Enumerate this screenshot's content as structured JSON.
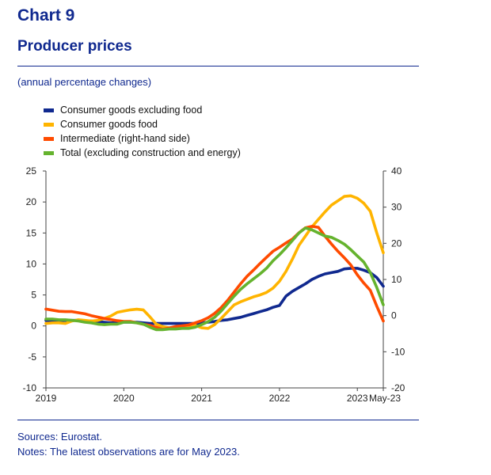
{
  "header": {
    "chart_number": "Chart 9",
    "title": "Producer prices"
  },
  "footer": {
    "sources": "Sources: Eurostat.",
    "notes": "Notes: The latest observations are for May 2023."
  },
  "chart_data": {
    "type": "line",
    "title": "Producer prices",
    "subtitle": "(annual percentage changes)",
    "x_ticks": [
      "2019",
      "2020",
      "2021",
      "2022",
      "2023",
      "May-23"
    ],
    "left_axis": {
      "ylim": [
        -10,
        25
      ],
      "ticks": [
        25,
        20,
        15,
        10,
        5,
        0,
        -5,
        -10
      ]
    },
    "right_axis": {
      "ylim": [
        -20,
        40
      ],
      "ticks": [
        40,
        30,
        20,
        10,
        0,
        -10,
        -20
      ]
    },
    "legend_placement": "top-left",
    "grid": false,
    "x_range": [
      "2019-01",
      "2023-05"
    ],
    "x": [
      "2019-01",
      "2019-02",
      "2019-03",
      "2019-04",
      "2019-05",
      "2019-06",
      "2019-07",
      "2019-08",
      "2019-09",
      "2019-10",
      "2019-11",
      "2019-12",
      "2020-01",
      "2020-02",
      "2020-03",
      "2020-04",
      "2020-05",
      "2020-06",
      "2020-07",
      "2020-08",
      "2020-09",
      "2020-10",
      "2020-11",
      "2020-12",
      "2021-01",
      "2021-02",
      "2021-03",
      "2021-04",
      "2021-05",
      "2021-06",
      "2021-07",
      "2021-08",
      "2021-09",
      "2021-10",
      "2021-11",
      "2021-12",
      "2022-01",
      "2022-02",
      "2022-03",
      "2022-04",
      "2022-05",
      "2022-06",
      "2022-07",
      "2022-08",
      "2022-09",
      "2022-10",
      "2022-11",
      "2022-12",
      "2023-01",
      "2023-02",
      "2023-03",
      "2023-04",
      "2023-05"
    ],
    "series": [
      {
        "name": "Consumer goods excluding food",
        "color": "#10298f",
        "axis": "left",
        "values": [
          0.9,
          0.9,
          0.9,
          0.9,
          0.9,
          0.9,
          0.8,
          0.8,
          0.7,
          0.6,
          0.5,
          0.5,
          0.6,
          0.6,
          0.6,
          0.5,
          0.4,
          0.4,
          0.4,
          0.4,
          0.4,
          0.4,
          0.4,
          0.4,
          0.5,
          0.6,
          0.7,
          0.9,
          1.0,
          1.2,
          1.4,
          1.7,
          2.0,
          2.3,
          2.6,
          3.0,
          3.3,
          4.8,
          5.6,
          6.2,
          6.8,
          7.5,
          8.0,
          8.4,
          8.6,
          8.8,
          9.2,
          9.3,
          9.3,
          9.0,
          8.6,
          7.8,
          6.4
        ]
      },
      {
        "name": "Consumer goods food",
        "color": "#ffb400",
        "axis": "left",
        "values": [
          0.4,
          0.5,
          0.5,
          0.4,
          0.8,
          1.0,
          0.9,
          0.8,
          0.9,
          1.2,
          1.6,
          2.2,
          2.4,
          2.6,
          2.7,
          2.6,
          1.5,
          0.3,
          -0.1,
          -0.3,
          -0.4,
          -0.2,
          -0.1,
          0.1,
          -0.3,
          -0.4,
          0.2,
          1.2,
          2.3,
          3.4,
          3.9,
          4.3,
          4.7,
          5.0,
          5.4,
          6.1,
          7.2,
          8.8,
          10.8,
          13.0,
          14.5,
          16.0,
          17.2,
          18.4,
          19.5,
          20.2,
          20.9,
          21.0,
          20.6,
          19.8,
          18.5,
          15.0,
          11.8
        ]
      },
      {
        "name": "Intermediate (right-hand side)",
        "color": "#ff4b00",
        "axis": "right",
        "values": [
          1.8,
          1.5,
          1.2,
          1.1,
          1.1,
          0.8,
          0.5,
          0.0,
          -0.4,
          -0.8,
          -1.1,
          -1.4,
          -1.6,
          -1.6,
          -2.0,
          -2.4,
          -2.7,
          -3.2,
          -3.8,
          -3.4,
          -3.0,
          -2.8,
          -2.6,
          -2.0,
          -1.4,
          -0.6,
          0.6,
          2.2,
          4.2,
          6.5,
          8.8,
          10.9,
          12.6,
          14.4,
          16.1,
          17.8,
          18.9,
          20.1,
          21.2,
          22.9,
          24.3,
          24.7,
          24.4,
          22.0,
          19.8,
          17.8,
          16.0,
          14.0,
          11.3,
          9.0,
          7.0,
          2.6,
          -1.5
        ]
      },
      {
        "name": "Total (excluding construction and energy)",
        "color": "#65b32e",
        "axis": "left",
        "values": [
          1.1,
          1.1,
          1.0,
          1.0,
          0.9,
          0.8,
          0.6,
          0.5,
          0.3,
          0.2,
          0.3,
          0.3,
          0.6,
          0.6,
          0.5,
          0.3,
          -0.2,
          -0.6,
          -0.6,
          -0.5,
          -0.5,
          -0.4,
          -0.4,
          -0.2,
          0.2,
          0.7,
          1.4,
          2.4,
          3.6,
          4.8,
          5.9,
          6.8,
          7.6,
          8.4,
          9.3,
          10.5,
          11.5,
          12.6,
          13.8,
          15.0,
          15.8,
          15.5,
          15.0,
          14.5,
          14.3,
          13.8,
          13.2,
          12.3,
          11.3,
          10.3,
          8.6,
          6.2,
          3.4
        ]
      }
    ]
  }
}
